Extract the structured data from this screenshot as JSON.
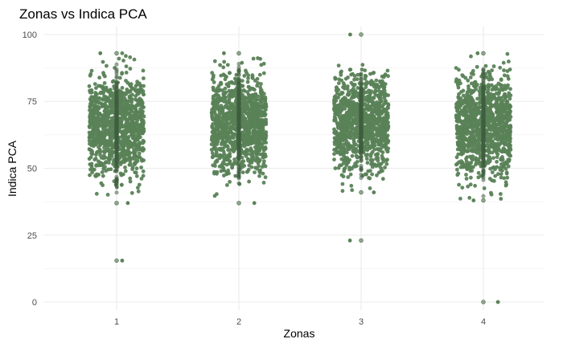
{
  "chart_data": {
    "type": "scatter",
    "title": "Zonas vs Indica PCA",
    "xlabel": "Zonas",
    "ylabel": "Indica PCA",
    "categories": [
      "1",
      "2",
      "3",
      "4"
    ],
    "ylim": [
      -3,
      103
    ],
    "y_ticks": [
      0,
      25,
      50,
      75,
      100
    ],
    "grid": true,
    "legend": "none",
    "colors": {
      "jitter_point": "#5a8257",
      "center_point": "#3f5f3f",
      "grid": "#ebebeb"
    },
    "series": [
      {
        "category": "1",
        "n_points": 1100,
        "center": 66,
        "spread": 9,
        "min_bulk": 40,
        "max_bulk": 93,
        "extremes": [
          15.5,
          37,
          93
        ]
      },
      {
        "category": "2",
        "n_points": 1100,
        "center": 67,
        "spread": 9,
        "min_bulk": 37,
        "max_bulk": 93,
        "extremes": [
          37,
          93
        ]
      },
      {
        "category": "3",
        "n_points": 1000,
        "center": 67,
        "spread": 9,
        "min_bulk": 40,
        "max_bulk": 89,
        "extremes": [
          23,
          100,
          41
        ]
      },
      {
        "category": "4",
        "n_points": 1100,
        "center": 66,
        "spread": 9,
        "min_bulk": 38,
        "max_bulk": 93,
        "extremes": [
          0,
          38,
          93
        ]
      }
    ]
  }
}
